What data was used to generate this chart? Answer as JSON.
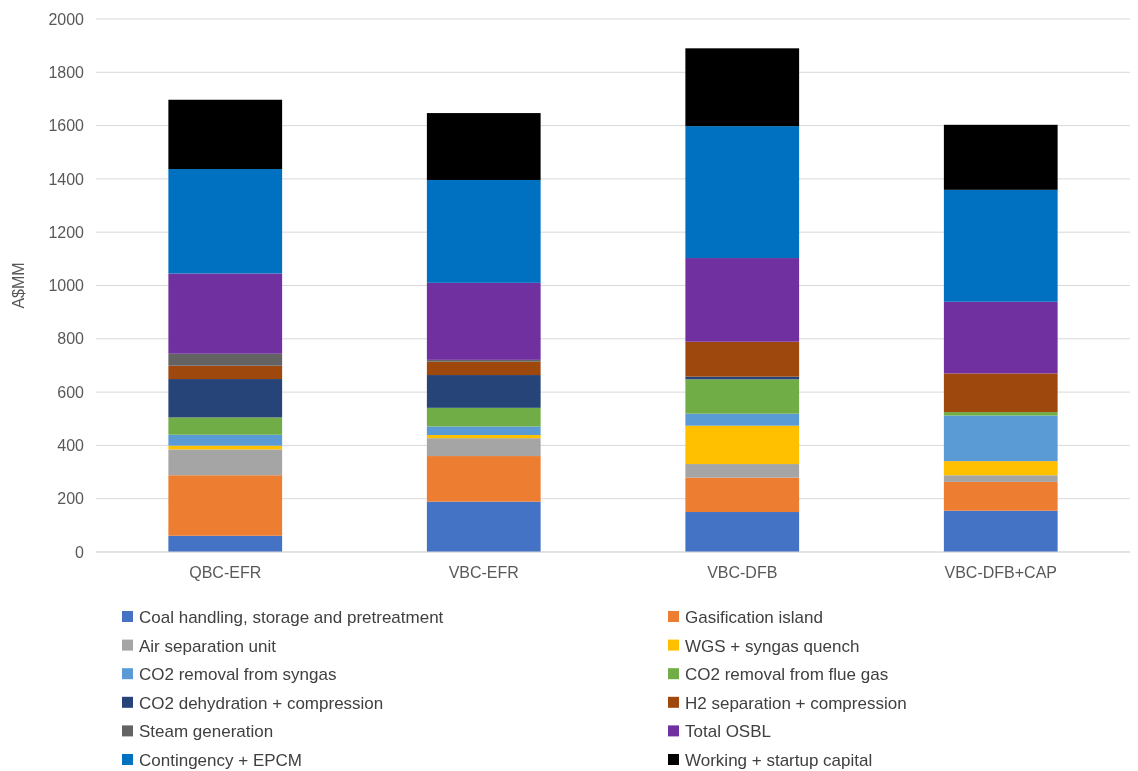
{
  "chart_data": {
    "type": "bar",
    "stacked": true,
    "ylabel": "A$MM",
    "categories": [
      "QBC-EFR",
      "VBC-EFR",
      "VBC-DFB",
      "VBC-DFB+CAP"
    ],
    "ylim": [
      0,
      2000
    ],
    "yticks": [
      0,
      200,
      400,
      600,
      800,
      1000,
      1200,
      1400,
      1600,
      1800,
      2000
    ],
    "grid": "y",
    "legend": "bottom",
    "series": [
      {
        "name": "Coal handling, storage and pretreatment",
        "color": "#4472c4",
        "values": [
          61,
          189,
          150,
          155
        ]
      },
      {
        "name": "Gasification island",
        "color": "#ed7d31",
        "values": [
          227,
          171,
          129,
          108
        ]
      },
      {
        "name": "Air separation unit",
        "color": "#a5a5a5",
        "values": [
          97,
          67,
          51,
          25
        ]
      },
      {
        "name": "WGS + syngas quench",
        "color": "#ffc000",
        "values": [
          14,
          12,
          144,
          53
        ]
      },
      {
        "name": "CO2 removal from syngas",
        "color": "#5b9bd5",
        "values": [
          41,
          32,
          45,
          171
        ]
      },
      {
        "name": "CO2 removal from flue gas",
        "color": "#70ad47",
        "values": [
          65,
          70,
          129,
          13
        ]
      },
      {
        "name": "CO2 dehydration + compression",
        "color": "#264478",
        "values": [
          144,
          123,
          10,
          0
        ]
      },
      {
        "name": "H2 separation + compression",
        "color": "#9e480e",
        "values": [
          50,
          50,
          131,
          145
        ]
      },
      {
        "name": "Steam generation",
        "color": "#636363",
        "values": [
          45,
          7,
          0,
          0
        ]
      },
      {
        "name": "Total OSBL",
        "color": "#7030a0",
        "values": [
          301,
          289,
          314,
          269
        ]
      },
      {
        "name": "Contingency + EPCM",
        "color": "#0070c0",
        "values": [
          392,
          386,
          495,
          420
        ]
      },
      {
        "name": "Working + startup capital",
        "color": "#000000",
        "values": [
          260,
          251,
          292,
          244
        ]
      }
    ]
  }
}
